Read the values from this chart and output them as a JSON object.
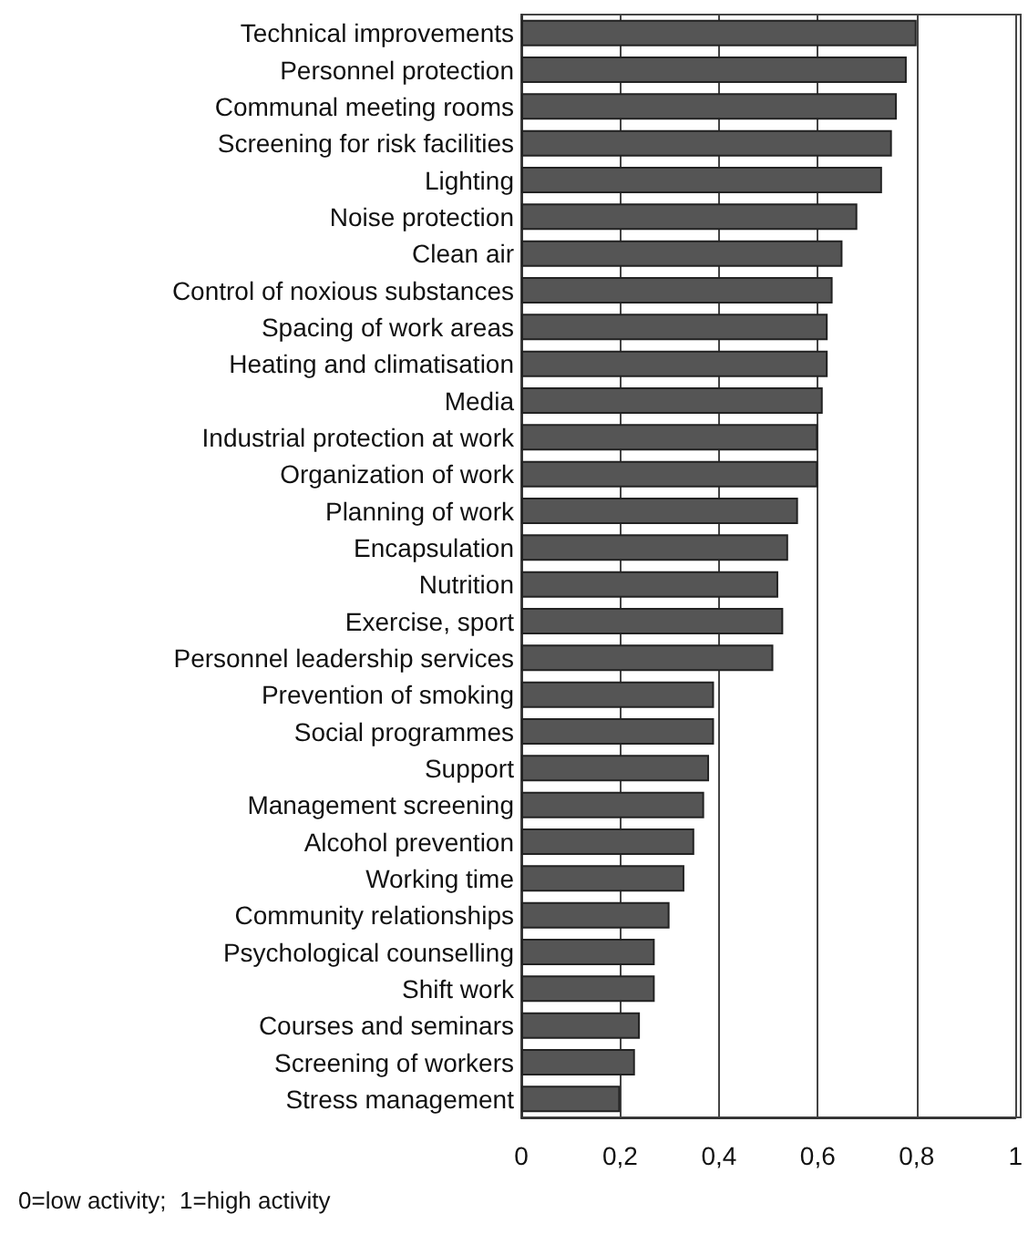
{
  "chart_data": {
    "type": "bar",
    "orientation": "horizontal",
    "categories": [
      "Technical improvements",
      "Personnel protection",
      "Communal meeting rooms",
      "Screening for risk facilities",
      "Lighting",
      "Noise protection",
      "Clean air",
      "Control of noxious substances",
      "Spacing of work areas",
      "Heating and climatisation",
      "Media",
      "Industrial protection at work",
      "Organization of work",
      "Planning of work",
      "Encapsulation",
      "Nutrition",
      "Exercise, sport",
      "Personnel leadership services",
      "Prevention of smoking",
      "Social programmes",
      "Support",
      "Management screening",
      "Alcohol prevention",
      "Working time",
      "Community relationships",
      "Psychological counselling",
      "Shift work",
      "Courses and seminars",
      "Screening of workers",
      "Stress management"
    ],
    "values": [
      0.8,
      0.78,
      0.76,
      0.75,
      0.73,
      0.68,
      0.65,
      0.63,
      0.62,
      0.62,
      0.61,
      0.6,
      0.6,
      0.56,
      0.54,
      0.52,
      0.53,
      0.51,
      0.39,
      0.39,
      0.38,
      0.37,
      0.35,
      0.33,
      0.3,
      0.27,
      0.27,
      0.24,
      0.23,
      0.2
    ],
    "color": "#555555",
    "xlim": [
      0,
      1
    ],
    "xticks": [
      {
        "value": 0,
        "label": "0"
      },
      {
        "value": 0.2,
        "label": "0,2"
      },
      {
        "value": 0.4,
        "label": "0,4"
      },
      {
        "value": 0.6,
        "label": "0,6"
      },
      {
        "value": 0.8,
        "label": "0,8"
      },
      {
        "value": 1,
        "label": "1"
      }
    ],
    "grid": "x",
    "annotations": [
      "0=low activity;  1=high activity"
    ]
  }
}
